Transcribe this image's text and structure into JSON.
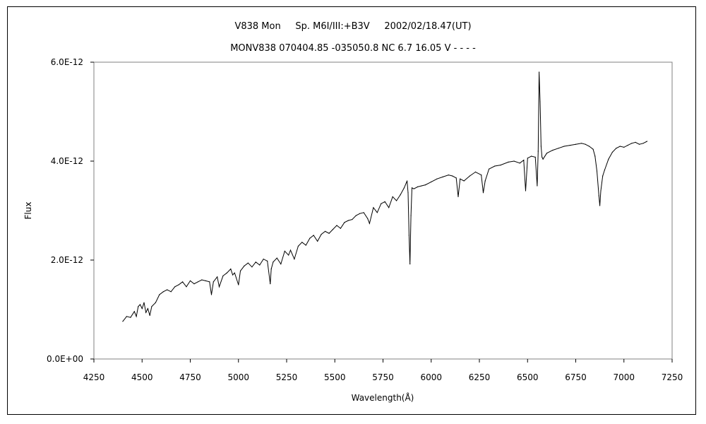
{
  "chart_data": {
    "type": "line",
    "title_line1": "V838 Mon     Sp. M6I/III:+B3V     2002/02/18.47(UT)",
    "title_line2": "MONV838 070404.85 -035050.8 NC 6.7 16.05 V - - - -",
    "xlabel": "Wavelength(Å)",
    "ylabel": "Flux",
    "xlim": [
      4250,
      7250
    ],
    "ylim": [
      0,
      6e-12
    ],
    "x_ticks": [
      4250,
      4500,
      4750,
      5000,
      5250,
      5500,
      5750,
      6000,
      6250,
      6500,
      6750,
      7000,
      7250
    ],
    "y_ticks": [
      0,
      2e-12,
      4e-12,
      6e-12
    ],
    "y_tick_labels": [
      "0.0E+00",
      "2.0E-12",
      "4.0E-12",
      "6.0E-12"
    ],
    "grid": false,
    "legend": "none",
    "series": [
      {
        "x": [
          4400,
          4420,
          4440,
          4460,
          4470,
          4480,
          4490,
          4500,
          4510,
          4520,
          4530,
          4540,
          4550,
          4570,
          4590,
          4610,
          4630,
          4650,
          4670,
          4690,
          4710,
          4730,
          4750,
          4770,
          4790,
          4810,
          4830,
          4850,
          4860,
          4870,
          4890,
          4900,
          4920,
          4940,
          4960,
          4970,
          4980,
          5000,
          5010,
          5030,
          5050,
          5070,
          5090,
          5110,
          5130,
          5150,
          5165,
          5170,
          5180,
          5200,
          5220,
          5240,
          5260,
          5270,
          5290,
          5310,
          5330,
          5350,
          5370,
          5390,
          5410,
          5430,
          5450,
          5470,
          5490,
          5510,
          5530,
          5550,
          5570,
          5590,
          5610,
          5630,
          5650,
          5670,
          5680,
          5700,
          5720,
          5740,
          5760,
          5780,
          5800,
          5820,
          5840,
          5860,
          5875,
          5880,
          5885,
          5890,
          5895,
          5900,
          5910,
          5930,
          5950,
          5970,
          6000,
          6030,
          6060,
          6090,
          6110,
          6130,
          6140,
          6150,
          6170,
          6200,
          6230,
          6260,
          6270,
          6280,
          6300,
          6330,
          6360,
          6400,
          6430,
          6460,
          6480,
          6490,
          6500,
          6520,
          6540,
          6550,
          6555,
          6560,
          6565,
          6570,
          6575,
          6580,
          6600,
          6630,
          6660,
          6690,
          6720,
          6750,
          6780,
          6800,
          6820,
          6840,
          6850,
          6860,
          6870,
          6875,
          6880,
          6890,
          6900,
          6920,
          6940,
          6960,
          6980,
          7000,
          7020,
          7040,
          7060,
          7080,
          7100,
          7120
        ],
        "values": [
          7.6e-13,
          8.6e-13,
          8.4e-13,
          9.6e-13,
          8.6e-13,
          1.06e-12,
          1.1e-12,
          1.02e-12,
          1.14e-12,
          9.4e-13,
          1.02e-12,
          8.8e-13,
          1.06e-12,
          1.14e-12,
          1.3e-12,
          1.36e-12,
          1.4e-12,
          1.36e-12,
          1.46e-12,
          1.5e-12,
          1.56e-12,
          1.46e-12,
          1.58e-12,
          1.52e-12,
          1.56e-12,
          1.6e-12,
          1.58e-12,
          1.56e-12,
          1.3e-12,
          1.56e-12,
          1.66e-12,
          1.46e-12,
          1.68e-12,
          1.74e-12,
          1.82e-12,
          1.7e-12,
          1.74e-12,
          1.5e-12,
          1.78e-12,
          1.88e-12,
          1.94e-12,
          1.86e-12,
          1.96e-12,
          1.9e-12,
          2.02e-12,
          1.98e-12,
          1.52e-12,
          1.82e-12,
          1.96e-12,
          2.04e-12,
          1.92e-12,
          2.18e-12,
          2.1e-12,
          2.2e-12,
          2.02e-12,
          2.28e-12,
          2.36e-12,
          2.3e-12,
          2.44e-12,
          2.5e-12,
          2.38e-12,
          2.52e-12,
          2.58e-12,
          2.54e-12,
          2.62e-12,
          2.7e-12,
          2.64e-12,
          2.76e-12,
          2.8e-12,
          2.82e-12,
          2.9e-12,
          2.94e-12,
          2.96e-12,
          2.84e-12,
          2.74e-12,
          3.06e-12,
          2.96e-12,
          3.14e-12,
          3.18e-12,
          3.06e-12,
          3.28e-12,
          3.2e-12,
          3.32e-12,
          3.46e-12,
          3.6e-12,
          3.36e-12,
          2.5e-12,
          1.92e-12,
          2.9e-12,
          3.46e-12,
          3.44e-12,
          3.48e-12,
          3.5e-12,
          3.52e-12,
          3.58e-12,
          3.64e-12,
          3.68e-12,
          3.72e-12,
          3.7e-12,
          3.66e-12,
          3.28e-12,
          3.64e-12,
          3.6e-12,
          3.7e-12,
          3.78e-12,
          3.72e-12,
          3.36e-12,
          3.6e-12,
          3.84e-12,
          3.9e-12,
          3.92e-12,
          3.98e-12,
          4e-12,
          3.96e-12,
          4.02e-12,
          3.4e-12,
          4.06e-12,
          4.1e-12,
          4.08e-12,
          3.5e-12,
          4.2e-12,
          5.8e-12,
          5.2e-12,
          4.3e-12,
          4.08e-12,
          4.04e-12,
          4.16e-12,
          4.22e-12,
          4.26e-12,
          4.3e-12,
          4.32e-12,
          4.34e-12,
          4.36e-12,
          4.34e-12,
          4.3e-12,
          4.24e-12,
          4.1e-12,
          3.8e-12,
          3.3e-12,
          3.1e-12,
          3.4e-12,
          3.7e-12,
          3.82e-12,
          4.04e-12,
          4.18e-12,
          4.26e-12,
          4.3e-12,
          4.28e-12,
          4.32e-12,
          4.36e-12,
          4.38e-12,
          4.34e-12,
          4.36e-12,
          4.4e-12
        ]
      }
    ]
  }
}
